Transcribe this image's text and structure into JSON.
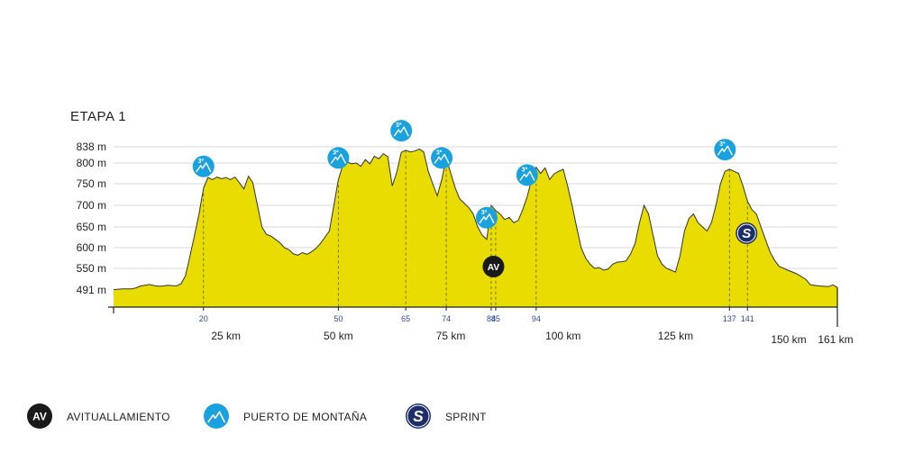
{
  "chart_data": {
    "type": "area",
    "title": "ETAPA 1",
    "xlim": [
      0,
      161
    ],
    "ylim": [
      460,
      838
    ],
    "y_ticks": [
      {
        "value": 838,
        "label": "838 m"
      },
      {
        "value": 800,
        "label": "800 m"
      },
      {
        "value": 750,
        "label": "750 m"
      },
      {
        "value": 700,
        "label": "700 m"
      },
      {
        "value": 650,
        "label": "650 m"
      },
      {
        "value": 600,
        "label": "600 m"
      },
      {
        "value": 550,
        "label": "550 m"
      },
      {
        "value": 491,
        "label": "491 m"
      }
    ],
    "km_ticks": [
      {
        "value": 25,
        "label": "25 km"
      },
      {
        "value": 50,
        "label": "50 km"
      },
      {
        "value": 75,
        "label": "75 km"
      },
      {
        "value": 100,
        "label": "100 km"
      },
      {
        "value": 125,
        "label": "125 km"
      },
      {
        "value": 150,
        "label": "150 km"
      },
      {
        "value": 161,
        "label": "161 km"
      }
    ],
    "point_ticks": [
      {
        "value": 20,
        "label": "20"
      },
      {
        "value": 50,
        "label": "50"
      },
      {
        "value": 65,
        "label": "65"
      },
      {
        "value": 74,
        "label": "74"
      },
      {
        "value": 84,
        "label": "84"
      },
      {
        "value": 85,
        "label": "85"
      },
      {
        "value": 94,
        "label": "94"
      },
      {
        "value": 137,
        "label": "137"
      },
      {
        "value": 141,
        "label": "141"
      }
    ],
    "series": [
      {
        "fill": "#e8dc00",
        "stroke": "#333333",
        "points": [
          [
            0,
            492
          ],
          [
            2,
            494
          ],
          [
            4,
            494
          ],
          [
            5,
            497
          ],
          [
            6,
            502
          ],
          [
            7,
            504
          ],
          [
            8,
            506
          ],
          [
            9,
            503
          ],
          [
            10,
            501
          ],
          [
            11,
            502
          ],
          [
            12,
            504
          ],
          [
            13,
            503
          ],
          [
            14,
            502
          ],
          [
            15,
            508
          ],
          [
            16,
            530
          ],
          [
            17,
            580
          ],
          [
            18,
            630
          ],
          [
            19,
            680
          ],
          [
            20,
            740
          ],
          [
            21,
            765
          ],
          [
            22,
            760
          ],
          [
            23,
            766
          ],
          [
            24,
            762
          ],
          [
            25,
            765
          ],
          [
            26,
            760
          ],
          [
            27,
            766
          ],
          [
            28,
            752
          ],
          [
            29,
            738
          ],
          [
            30,
            768
          ],
          [
            31,
            752
          ],
          [
            32,
            700
          ],
          [
            33,
            650
          ],
          [
            34,
            632
          ],
          [
            35,
            628
          ],
          [
            36,
            620
          ],
          [
            37,
            612
          ],
          [
            38,
            600
          ],
          [
            39,
            595
          ],
          [
            40,
            585
          ],
          [
            41,
            582
          ],
          [
            42,
            588
          ],
          [
            43,
            584
          ],
          [
            44,
            590
          ],
          [
            45,
            598
          ],
          [
            46,
            610
          ],
          [
            47,
            625
          ],
          [
            48,
            640
          ],
          [
            49,
            700
          ],
          [
            50,
            760
          ],
          [
            51,
            795
          ],
          [
            52,
            802
          ],
          [
            53,
            798
          ],
          [
            54,
            800
          ],
          [
            55,
            792
          ],
          [
            56,
            808
          ],
          [
            57,
            798
          ],
          [
            58,
            816
          ],
          [
            59,
            810
          ],
          [
            60,
            822
          ],
          [
            61,
            815
          ],
          [
            62,
            745
          ],
          [
            63,
            778
          ],
          [
            64,
            825
          ],
          [
            65,
            830
          ],
          [
            66,
            826
          ],
          [
            67,
            828
          ],
          [
            68,
            833
          ],
          [
            69,
            826
          ],
          [
            70,
            780
          ],
          [
            71,
            750
          ],
          [
            72,
            722
          ],
          [
            73,
            760
          ],
          [
            74,
            812
          ],
          [
            75,
            775
          ],
          [
            76,
            740
          ],
          [
            77,
            715
          ],
          [
            78,
            705
          ],
          [
            79,
            695
          ],
          [
            80,
            680
          ],
          [
            81,
            650
          ],
          [
            82,
            630
          ],
          [
            83,
            620
          ],
          [
            84,
            700
          ],
          [
            85,
            688
          ],
          [
            86,
            680
          ],
          [
            87,
            667
          ],
          [
            88,
            672
          ],
          [
            89,
            660
          ],
          [
            90,
            665
          ],
          [
            91,
            690
          ],
          [
            92,
            720
          ],
          [
            93,
            760
          ],
          [
            94,
            790
          ],
          [
            95,
            775
          ],
          [
            96,
            788
          ],
          [
            97,
            760
          ],
          [
            98,
            774
          ],
          [
            99,
            780
          ],
          [
            100,
            785
          ],
          [
            101,
            745
          ],
          [
            102,
            700
          ],
          [
            103,
            650
          ],
          [
            104,
            600
          ],
          [
            105,
            575
          ],
          [
            106,
            560
          ],
          [
            107,
            550
          ],
          [
            108,
            552
          ],
          [
            109,
            545
          ],
          [
            110,
            548
          ],
          [
            111,
            560
          ],
          [
            112,
            565
          ],
          [
            113,
            566
          ],
          [
            114,
            568
          ],
          [
            115,
            585
          ],
          [
            116,
            610
          ],
          [
            117,
            660
          ],
          [
            118,
            700
          ],
          [
            119,
            680
          ],
          [
            120,
            630
          ],
          [
            121,
            580
          ],
          [
            122,
            560
          ],
          [
            123,
            550
          ],
          [
            124,
            545
          ],
          [
            125,
            540
          ],
          [
            126,
            580
          ],
          [
            127,
            640
          ],
          [
            128,
            670
          ],
          [
            129,
            680
          ],
          [
            130,
            660
          ],
          [
            131,
            650
          ],
          [
            132,
            640
          ],
          [
            133,
            660
          ],
          [
            134,
            700
          ],
          [
            135,
            750
          ],
          [
            136,
            780
          ],
          [
            137,
            785
          ],
          [
            138,
            780
          ],
          [
            139,
            775
          ],
          [
            140,
            745
          ],
          [
            141,
            710
          ],
          [
            142,
            690
          ],
          [
            143,
            680
          ],
          [
            144,
            650
          ],
          [
            145,
            620
          ],
          [
            146,
            590
          ],
          [
            147,
            570
          ],
          [
            148,
            555
          ],
          [
            150,
            545
          ],
          [
            152,
            535
          ],
          [
            154,
            520
          ],
          [
            155,
            505
          ],
          [
            157,
            502
          ],
          [
            159,
            500
          ],
          [
            160,
            505
          ],
          [
            161,
            498
          ]
        ]
      }
    ],
    "dashed_markers": [
      20,
      50,
      65,
      74,
      84,
      85,
      94,
      137,
      141
    ],
    "markers": [
      {
        "type": "mountain",
        "km": 20,
        "label": "3ª"
      },
      {
        "type": "mountain",
        "km": 50,
        "label": "3ª"
      },
      {
        "type": "mountain",
        "km": 64,
        "label": "3ª"
      },
      {
        "type": "mountain",
        "km": 73,
        "label": "3ª"
      },
      {
        "type": "mountain",
        "km": 83,
        "label": "3ª"
      },
      {
        "type": "mountain",
        "km": 92,
        "label": "3ª"
      },
      {
        "type": "mountain",
        "km": 136,
        "label": "3ª"
      },
      {
        "type": "feed",
        "km": 84.5,
        "label": "AV"
      },
      {
        "type": "sprint",
        "km": 141,
        "label": "S"
      }
    ],
    "legend": [
      {
        "type": "feed",
        "icon_text": "AV",
        "label": "AVITUALLAMIENTO"
      },
      {
        "type": "mountain",
        "icon_text": "",
        "label": "PUERTO DE MONTAÑA"
      },
      {
        "type": "sprint",
        "icon_text": "S",
        "label": "SPRINT"
      }
    ],
    "colors": {
      "fill": "#e8dc00",
      "outline": "#333333",
      "mountain": "#1aa1e0",
      "feed": "#1a1a1a",
      "sprint": "#1c2f6b",
      "grid": "#d9d9d9",
      "point_label": "#2a4a9c"
    }
  }
}
